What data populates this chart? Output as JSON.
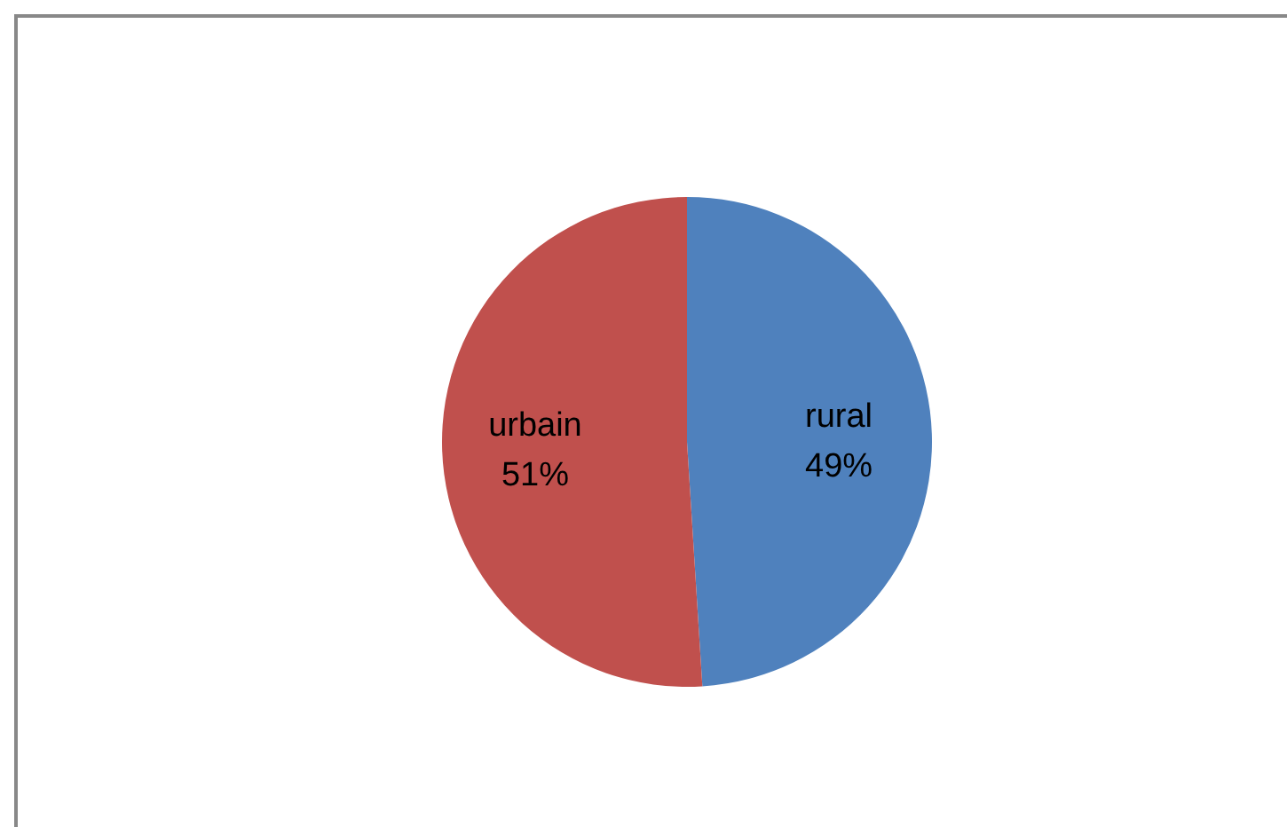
{
  "chart_data": {
    "type": "pie",
    "categories": [
      "rural",
      "urbain"
    ],
    "values": [
      49,
      51
    ],
    "colors": [
      "#4f81bd",
      "#c0504d"
    ],
    "value_labels": [
      "49%",
      "51%"
    ]
  }
}
